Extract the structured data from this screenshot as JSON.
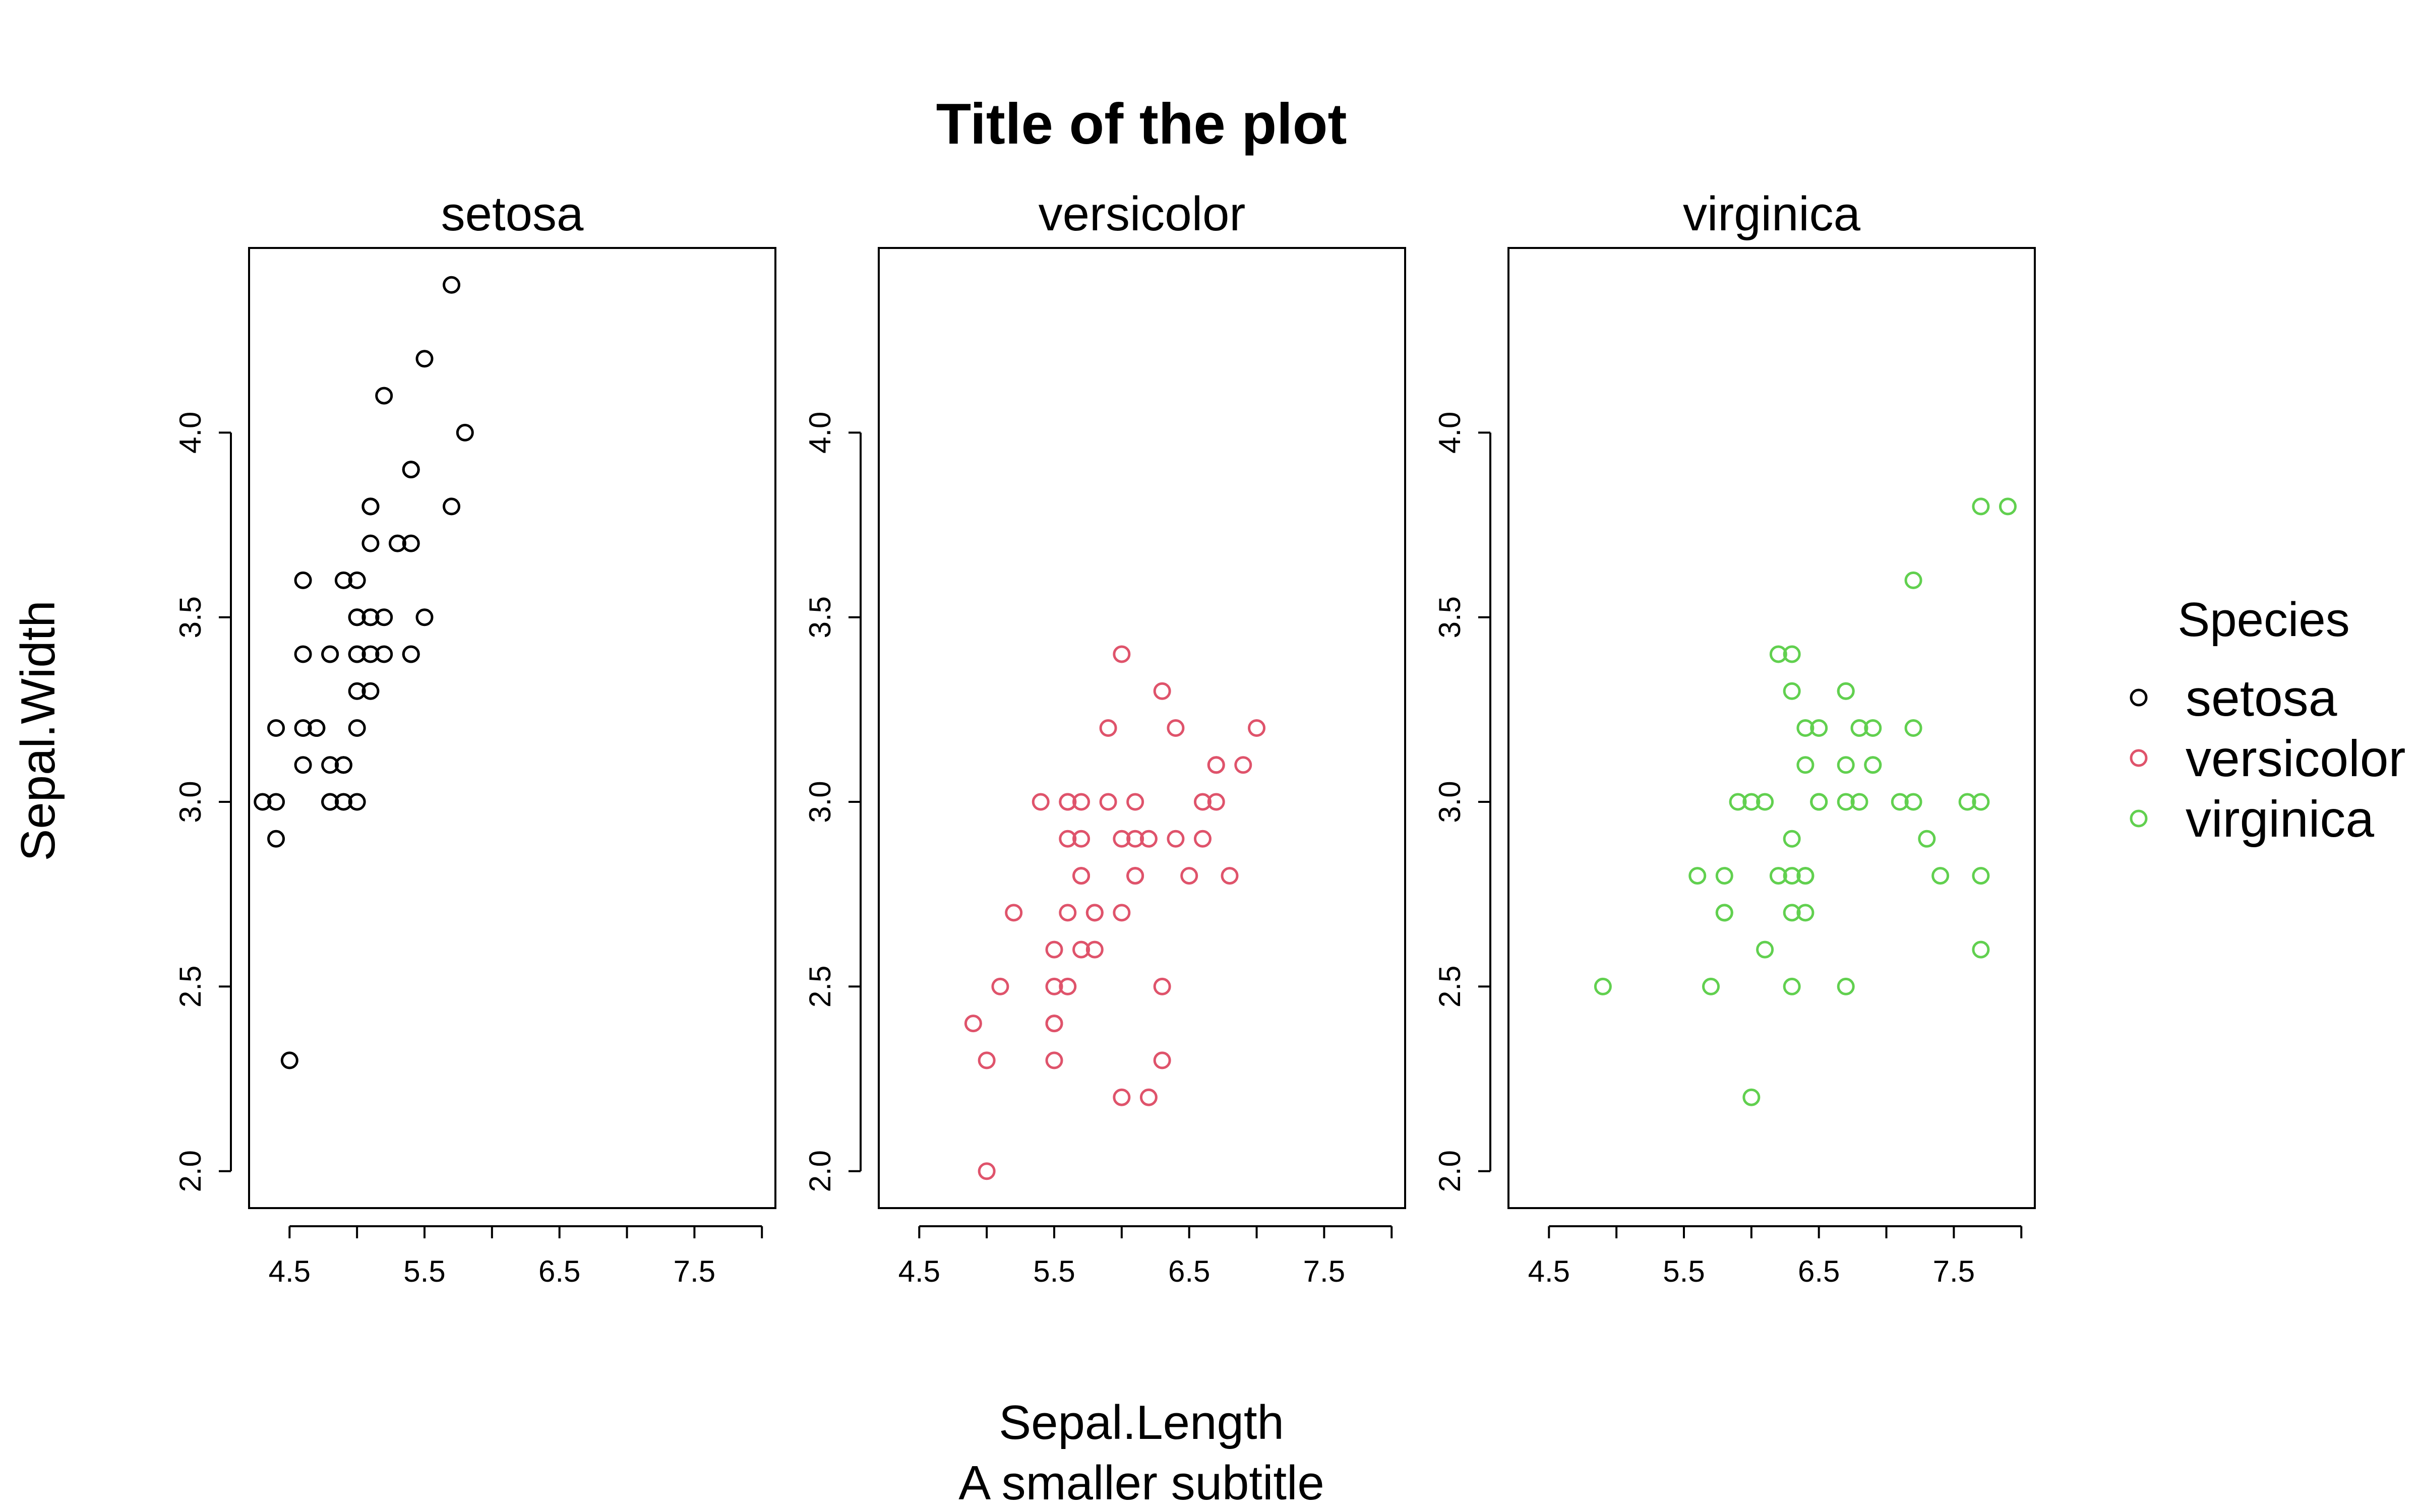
{
  "chart_data": {
    "type": "scatter",
    "title": "Title of the plot",
    "subtitle": "A smaller subtitle",
    "xlabel": "Sepal.Length",
    "ylabel": "Sepal.Width",
    "xlim": [
      4.2,
      8.1
    ],
    "ylim": [
      1.9,
      4.5
    ],
    "xticks": [
      "4.5",
      "5.5",
      "6.5",
      "7.5"
    ],
    "yticks": [
      "2.0",
      "2.5",
      "3.0",
      "3.5",
      "4.0"
    ],
    "legend": {
      "title": "Species",
      "position": "right",
      "entries": [
        {
          "label": "setosa",
          "color": "#000000"
        },
        {
          "label": "versicolor",
          "color": "#DF536B"
        },
        {
          "label": "virginica",
          "color": "#61D04F"
        }
      ]
    },
    "series": [
      {
        "name": "setosa",
        "color": "#000000",
        "points": [
          [
            5.1,
            3.5
          ],
          [
            4.9,
            3.0
          ],
          [
            4.7,
            3.2
          ],
          [
            4.6,
            3.1
          ],
          [
            5.0,
            3.6
          ],
          [
            5.4,
            3.9
          ],
          [
            4.6,
            3.4
          ],
          [
            5.0,
            3.4
          ],
          [
            4.4,
            2.9
          ],
          [
            4.9,
            3.1
          ],
          [
            5.4,
            3.7
          ],
          [
            4.8,
            3.4
          ],
          [
            4.8,
            3.0
          ],
          [
            4.3,
            3.0
          ],
          [
            5.8,
            4.0
          ],
          [
            5.7,
            4.4
          ],
          [
            5.4,
            3.9
          ],
          [
            5.1,
            3.5
          ],
          [
            5.7,
            3.8
          ],
          [
            5.1,
            3.8
          ],
          [
            5.4,
            3.4
          ],
          [
            5.1,
            3.7
          ],
          [
            4.6,
            3.6
          ],
          [
            5.1,
            3.3
          ],
          [
            4.8,
            3.4
          ],
          [
            5.0,
            3.0
          ],
          [
            5.0,
            3.4
          ],
          [
            5.2,
            3.5
          ],
          [
            5.2,
            3.4
          ],
          [
            4.7,
            3.2
          ],
          [
            4.8,
            3.1
          ],
          [
            5.4,
            3.4
          ],
          [
            5.2,
            4.1
          ],
          [
            5.5,
            4.2
          ],
          [
            4.9,
            3.1
          ],
          [
            5.0,
            3.2
          ],
          [
            5.5,
            3.5
          ],
          [
            4.9,
            3.6
          ],
          [
            4.4,
            3.0
          ],
          [
            5.1,
            3.4
          ],
          [
            5.0,
            3.5
          ],
          [
            4.5,
            2.3
          ],
          [
            4.4,
            3.2
          ],
          [
            5.0,
            3.5
          ],
          [
            5.1,
            3.8
          ],
          [
            4.8,
            3.0
          ],
          [
            5.1,
            3.8
          ],
          [
            4.6,
            3.2
          ],
          [
            5.3,
            3.7
          ],
          [
            5.0,
            3.3
          ]
        ]
      },
      {
        "name": "versicolor",
        "color": "#DF536B",
        "points": [
          [
            7.0,
            3.2
          ],
          [
            6.4,
            3.2
          ],
          [
            6.9,
            3.1
          ],
          [
            5.5,
            2.3
          ],
          [
            6.5,
            2.8
          ],
          [
            5.7,
            2.8
          ],
          [
            6.3,
            3.3
          ],
          [
            4.9,
            2.4
          ],
          [
            6.6,
            2.9
          ],
          [
            5.2,
            2.7
          ],
          [
            5.0,
            2.0
          ],
          [
            5.9,
            3.0
          ],
          [
            6.0,
            2.2
          ],
          [
            6.1,
            2.9
          ],
          [
            5.6,
            2.9
          ],
          [
            6.7,
            3.1
          ],
          [
            5.6,
            3.0
          ],
          [
            5.8,
            2.7
          ],
          [
            6.2,
            2.2
          ],
          [
            5.6,
            2.5
          ],
          [
            5.9,
            3.2
          ],
          [
            6.1,
            2.8
          ],
          [
            6.3,
            2.5
          ],
          [
            6.1,
            2.8
          ],
          [
            6.4,
            2.9
          ],
          [
            6.6,
            3.0
          ],
          [
            6.8,
            2.8
          ],
          [
            6.7,
            3.0
          ],
          [
            6.0,
            2.9
          ],
          [
            5.7,
            2.6
          ],
          [
            5.5,
            2.4
          ],
          [
            5.5,
            2.4
          ],
          [
            5.8,
            2.7
          ],
          [
            6.0,
            2.7
          ],
          [
            5.4,
            3.0
          ],
          [
            6.0,
            3.4
          ],
          [
            6.7,
            3.1
          ],
          [
            6.3,
            2.3
          ],
          [
            5.6,
            3.0
          ],
          [
            5.5,
            2.5
          ],
          [
            5.5,
            2.6
          ],
          [
            6.1,
            3.0
          ],
          [
            5.8,
            2.6
          ],
          [
            5.0,
            2.3
          ],
          [
            5.6,
            2.7
          ],
          [
            5.7,
            3.0
          ],
          [
            5.7,
            2.9
          ],
          [
            6.2,
            2.9
          ],
          [
            5.1,
            2.5
          ],
          [
            5.7,
            2.8
          ]
        ]
      },
      {
        "name": "virginica",
        "color": "#61D04F",
        "points": [
          [
            6.3,
            3.3
          ],
          [
            5.8,
            2.7
          ],
          [
            7.1,
            3.0
          ],
          [
            6.3,
            2.9
          ],
          [
            6.5,
            3.0
          ],
          [
            7.6,
            3.0
          ],
          [
            4.9,
            2.5
          ],
          [
            7.3,
            2.9
          ],
          [
            6.7,
            2.5
          ],
          [
            7.2,
            3.6
          ],
          [
            6.5,
            3.2
          ],
          [
            6.4,
            2.7
          ],
          [
            6.8,
            3.0
          ],
          [
            5.7,
            2.5
          ],
          [
            5.8,
            2.8
          ],
          [
            6.4,
            3.2
          ],
          [
            6.5,
            3.0
          ],
          [
            7.7,
            3.8
          ],
          [
            7.7,
            2.6
          ],
          [
            6.0,
            2.2
          ],
          [
            6.9,
            3.2
          ],
          [
            5.6,
            2.8
          ],
          [
            7.7,
            2.8
          ],
          [
            6.3,
            2.7
          ],
          [
            6.7,
            3.3
          ],
          [
            7.2,
            3.2
          ],
          [
            6.2,
            2.8
          ],
          [
            6.1,
            3.0
          ],
          [
            6.4,
            2.8
          ],
          [
            7.2,
            3.0
          ],
          [
            7.4,
            2.8
          ],
          [
            7.9,
            3.8
          ],
          [
            6.4,
            2.8
          ],
          [
            6.3,
            2.8
          ],
          [
            6.1,
            2.6
          ],
          [
            7.7,
            3.0
          ],
          [
            6.3,
            3.4
          ],
          [
            6.4,
            3.1
          ],
          [
            6.0,
            3.0
          ],
          [
            6.9,
            3.1
          ],
          [
            6.7,
            3.1
          ],
          [
            6.9,
            3.1
          ],
          [
            5.8,
            2.7
          ],
          [
            6.8,
            3.2
          ],
          [
            6.7,
            3.3
          ],
          [
            6.7,
            3.0
          ],
          [
            6.3,
            2.5
          ],
          [
            6.5,
            3.0
          ],
          [
            6.2,
            3.4
          ],
          [
            5.9,
            3.0
          ]
        ]
      }
    ]
  }
}
